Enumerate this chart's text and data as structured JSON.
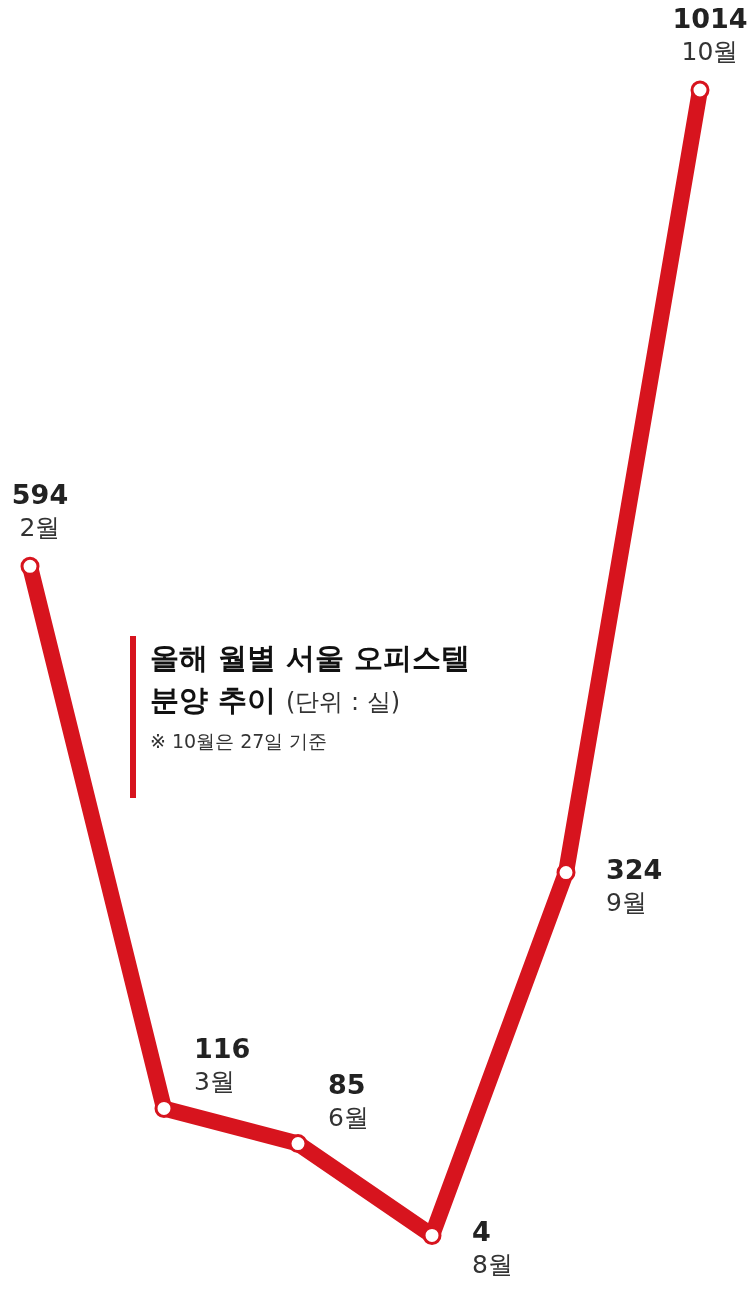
{
  "chart_data": {
    "type": "line",
    "title": "올해 월별 서울 오피스텔",
    "subtitle": "분양 추이",
    "annotations": [
      "(단위 : 실)",
      "※ 10월은 27일 기준"
    ],
    "categories": [
      "2월",
      "3월",
      "6월",
      "8월",
      "9월",
      "10월"
    ],
    "values": [
      594,
      116,
      85,
      4,
      324,
      1014
    ],
    "color": "#d7141e",
    "marker": "circle",
    "line_style": "solid",
    "data_labels": true
  }
}
